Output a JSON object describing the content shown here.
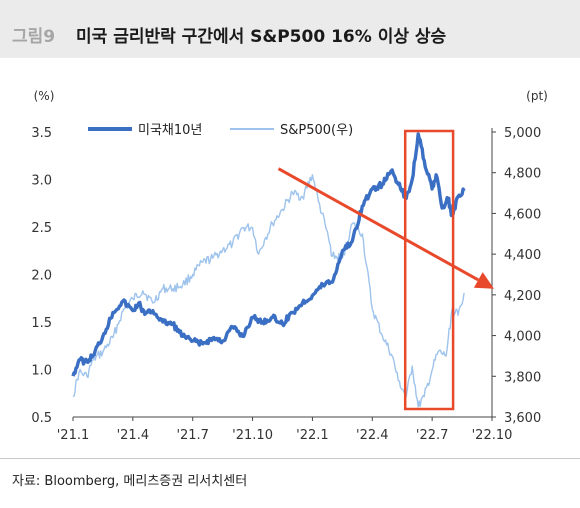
{
  "figure": {
    "number": "그림9",
    "title": "미국 금리반락 구간에서 S&P500 16% 이상 상승",
    "source": "자료: Bloomberg, 메리츠증권 리서치센터"
  },
  "chart_data": {
    "type": "line",
    "title": "미국 금리반락 구간에서 S&P500 16% 이상 상승",
    "x_tick_labels": [
      "'21.1",
      "'21.4",
      "'21.7",
      "'21.10",
      "'22.1",
      "'22.4",
      "'22.7",
      "'22.10"
    ],
    "xlim": [
      0,
      21
    ],
    "left_axis": {
      "unit": "(%)",
      "ylim": [
        0.5,
        3.5
      ],
      "ticks": [
        "0.5",
        "1.0",
        "1.5",
        "2.0",
        "2.5",
        "3.0",
        "3.5"
      ],
      "tick_values": [
        0.5,
        1.0,
        1.5,
        2.0,
        2.5,
        3.0,
        3.5
      ]
    },
    "right_axis": {
      "unit": "(pt)",
      "ylim": [
        3600,
        5000
      ],
      "ticks": [
        "3,600",
        "3,800",
        "4,000",
        "4,200",
        "4,400",
        "4,600",
        "4,800",
        "5,000"
      ],
      "tick_values": [
        3600,
        3800,
        4000,
        4200,
        4400,
        4600,
        4800,
        5000
      ]
    },
    "legend_position": "top-left",
    "series": [
      {
        "name": "미국채10년",
        "axis": "left",
        "color": "#3a6fc4",
        "x": [
          0,
          0.3,
          0.7,
          1.0,
          1.5,
          2.0,
          2.5,
          3.0,
          3.3,
          3.6,
          4.0,
          4.5,
          5.0,
          5.5,
          6.0,
          6.5,
          7.0,
          7.5,
          8.0,
          8.5,
          9.0,
          9.5,
          10.0,
          10.5,
          11.0,
          11.5,
          12.0,
          12.3,
          12.7,
          13.0,
          13.5,
          14.0,
          14.5,
          15.0,
          15.5,
          16.0,
          16.3,
          16.7,
          17.0,
          17.3,
          17.6,
          18.0,
          18.2,
          18.5,
          18.8,
          19.0,
          19.3,
          19.6
        ],
        "y": [
          0.93,
          1.1,
          1.08,
          1.15,
          1.35,
          1.6,
          1.72,
          1.62,
          1.7,
          1.58,
          1.62,
          1.5,
          1.48,
          1.35,
          1.3,
          1.27,
          1.33,
          1.3,
          1.45,
          1.35,
          1.55,
          1.5,
          1.55,
          1.48,
          1.6,
          1.7,
          1.78,
          1.85,
          1.92,
          1.92,
          2.25,
          2.35,
          2.72,
          2.9,
          2.95,
          3.1,
          2.95,
          2.8,
          3.0,
          3.48,
          3.2,
          2.9,
          3.05,
          2.7,
          2.8,
          2.62,
          2.82,
          2.88
        ]
      },
      {
        "name": "S&P500(우)",
        "axis": "right",
        "color": "#9ec3ec",
        "x": [
          0,
          0.3,
          0.7,
          1.0,
          1.5,
          2.0,
          2.5,
          3.0,
          3.5,
          4.0,
          4.5,
          5.0,
          5.5,
          6.0,
          6.5,
          7.0,
          7.5,
          8.0,
          8.5,
          9.0,
          9.3,
          9.6,
          10.0,
          10.5,
          11.0,
          11.5,
          12.0,
          12.3,
          12.7,
          13.0,
          13.5,
          14.0,
          14.5,
          15.0,
          15.5,
          16.0,
          16.3,
          16.7,
          17.0,
          17.3,
          17.6,
          18.0,
          18.3,
          18.7,
          19.0,
          19.3,
          19.6
        ],
        "y": [
          3700,
          3820,
          3800,
          3880,
          3920,
          3990,
          4120,
          4180,
          4220,
          4160,
          4230,
          4230,
          4250,
          4300,
          4360,
          4380,
          4420,
          4450,
          4530,
          4530,
          4400,
          4470,
          4550,
          4620,
          4700,
          4680,
          4790,
          4660,
          4520,
          4390,
          4380,
          4550,
          4500,
          4130,
          4000,
          3900,
          3780,
          3700,
          3850,
          3650,
          3700,
          3830,
          3920,
          3900,
          4130,
          4100,
          4210
        ]
      }
    ],
    "annotations": [
      {
        "type": "highlight-box",
        "x_range": [
          16.65,
          19.05
        ],
        "color": "#e8492b"
      },
      {
        "type": "arrow",
        "from": [
          10.3,
          4820
        ],
        "to": [
          21.1,
          4230
        ],
        "color": "#e8492b"
      }
    ]
  }
}
